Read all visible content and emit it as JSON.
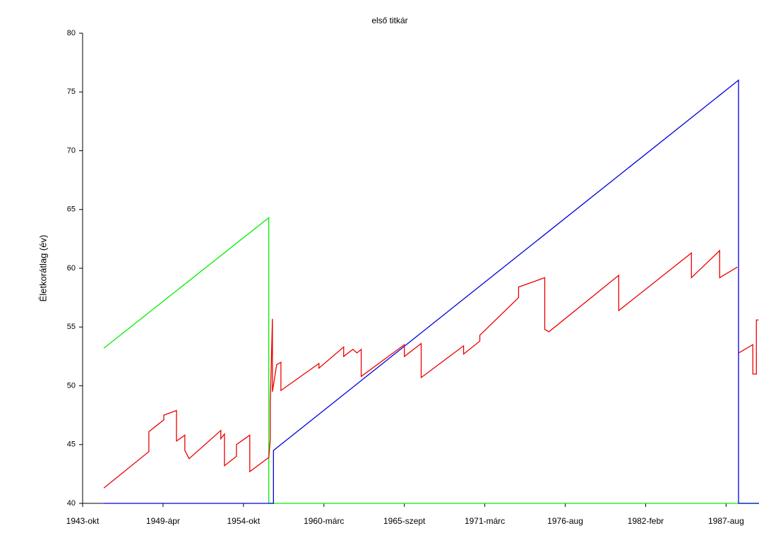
{
  "chart_data": {
    "type": "line",
    "subtitle": "első titkár",
    "y_label": "Életkorátlag (év)",
    "xlim": [
      1943.75,
      1990
    ],
    "xticks": [
      {
        "value": 1943.75,
        "label": "1943-okt"
      },
      {
        "value": 1949.25,
        "label": "1949-ápr"
      },
      {
        "value": 1954.75,
        "label": "1954-okt"
      },
      {
        "value": 1960.25,
        "label": "1960-márc"
      },
      {
        "value": 1965.75,
        "label": "1965-szept"
      },
      {
        "value": 1971.25,
        "label": "1971-márc"
      },
      {
        "value": 1976.75,
        "label": "1976-aug"
      },
      {
        "value": 1982.25,
        "label": "1982-febr"
      },
      {
        "value": 1987.75,
        "label": "1987-aug"
      }
    ],
    "ylim": [
      40,
      80
    ],
    "yticks": [
      40,
      45,
      50,
      55,
      60,
      65,
      70,
      75,
      80
    ],
    "series": [
      {
        "color": "#00ee00",
        "x": [
          1945.2,
          1956.48,
          1956.48,
          1990
        ],
        "values": [
          53.2,
          64.3,
          40,
          40
        ]
      },
      {
        "color": "#0000dd",
        "x": [
          1945.2,
          1956.8,
          1956.8,
          1988.6,
          1988.6,
          1990
        ],
        "values": [
          40,
          40,
          44.5,
          76,
          40,
          40
        ]
      },
      {
        "color": "#ee0000",
        "x": [
          1945.2,
          1948.28,
          1948.28,
          1949.3,
          1949.3,
          1950.17,
          1950.17,
          1950.74,
          1950.74,
          1951.03,
          1953.2,
          1953.2,
          1953.45,
          1953.45,
          1954.27,
          1954.27,
          1955.18,
          1955.18,
          1956.48,
          1956.58,
          1956.58,
          1956.73,
          1956.73,
          1957.02,
          1957.31,
          1957.31,
          1959.91,
          1959.91,
          1961.6,
          1961.6,
          1962.23,
          1962.51,
          1962.8,
          1962.8,
          1965.75,
          1965.75,
          1966.9,
          1966.9,
          1969.8,
          1969.8,
          1970.91,
          1970.91,
          1973.56,
          1973.56,
          1975.35,
          1975.35,
          1975.64,
          1980.41,
          1980.41,
          1985.38,
          1985.38,
          1987.31,
          1987.31,
          1988.52,
          null,
          1988.61,
          1989.58,
          1989.58,
          1989.82,
          1989.82,
          1989.97
        ],
        "values": [
          41.3,
          44.4,
          46.1,
          47.1,
          47.5,
          47.9,
          45.3,
          45.8,
          44.5,
          43.8,
          46.2,
          45.5,
          45.9,
          43.2,
          44,
          45,
          45.8,
          42.7,
          43.9,
          45.4,
          48.5,
          55.7,
          49.5,
          51.8,
          52,
          49.6,
          51.9,
          51.5,
          53.3,
          52.5,
          53.1,
          52.8,
          53.1,
          50.8,
          53.5,
          52.5,
          53.6,
          50.7,
          53.4,
          52.7,
          53.8,
          54.3,
          57.5,
          58.4,
          59.2,
          54.8,
          54.6,
          59.4,
          56.4,
          61.3,
          59.2,
          61.5,
          59.2,
          60.1,
          null,
          52.8,
          53.5,
          51,
          51,
          55.6,
          55.6
        ]
      }
    ]
  }
}
